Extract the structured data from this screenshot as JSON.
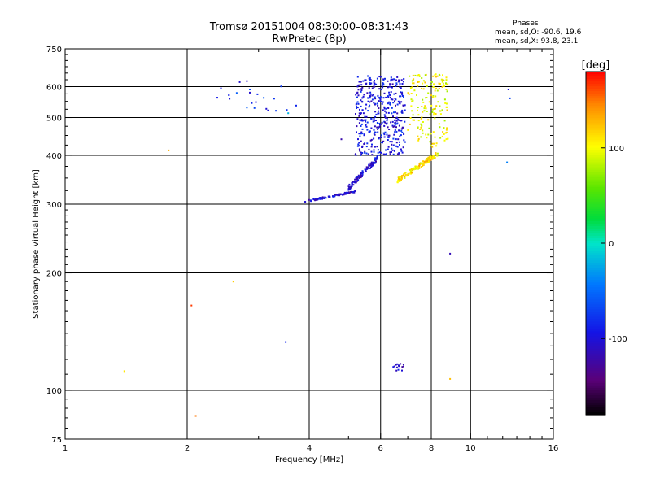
{
  "header": {
    "title_line1": "Tromsø 20151004 08:30:00–08:31:43",
    "title_line2": "RwPretec (8p)",
    "info_title": "Phases",
    "info_o": "mean, sd,O: -90.6, 19.6",
    "info_x": "mean, sd,X:  93.8, 23.1"
  },
  "colorbar": {
    "label": "[deg]",
    "ticks": [
      {
        "value": 100,
        "label": "100"
      },
      {
        "value": 0,
        "label": "0"
      },
      {
        "value": -100,
        "label": "-100"
      }
    ],
    "range": [
      -180,
      180
    ]
  },
  "chart_data": {
    "type": "scatter",
    "title": "Tromsø 20151004 08:30:00–08:31:43",
    "subtitle": "RwPretec (8p)",
    "xlabel": "Frequency [MHz]",
    "ylabel": "Stationary phase Virtual Height [km]",
    "xscale": "log",
    "yscale": "log",
    "xlim": [
      1,
      16
    ],
    "ylim": [
      75,
      750
    ],
    "xticks": [
      1,
      2,
      4,
      6,
      8,
      10,
      16
    ],
    "xtick_labels": [
      "1",
      "2",
      "4",
      "6",
      "8",
      "10",
      "16"
    ],
    "yticks": [
      75,
      100,
      200,
      300,
      400,
      500,
      600,
      750
    ],
    "ytick_labels": [
      "75",
      "100",
      "200",
      "300",
      "400",
      "500",
      "600",
      "750"
    ],
    "grid": true,
    "color_scale": "phase [deg]",
    "point_groups": [
      {
        "x": [
          3.9,
          5.2
        ],
        "y": [
          303,
          325
        ],
        "phase": -105,
        "count": 90,
        "shape": "band"
      },
      {
        "x": [
          5.0,
          5.9
        ],
        "y": [
          325,
          400
        ],
        "phase": -105,
        "count": 110,
        "shape": "band"
      },
      {
        "x": [
          5.2,
          6.9
        ],
        "y": [
          400,
          640
        ],
        "phase": -95,
        "count": 420,
        "shape": "cloud"
      },
      {
        "x": [
          6.6,
          8.3
        ],
        "y": [
          340,
          410
        ],
        "phase": 110,
        "count": 150,
        "shape": "band"
      },
      {
        "x": [
          7.0,
          8.8
        ],
        "y": [
          420,
          650
        ],
        "phase": 100,
        "count": 170,
        "shape": "cloud"
      },
      {
        "x": [
          2.35,
          3.75
        ],
        "y": [
          520,
          625
        ],
        "phase": -80,
        "count": 22,
        "shape": "cloud"
      },
      {
        "x": [
          6.4,
          6.9
        ],
        "y": [
          112,
          117
        ],
        "phase": -110,
        "count": 14,
        "shape": "cloud"
      }
    ],
    "isolated_points": [
      {
        "x": 1.4,
        "y": 112,
        "phase": 110
      },
      {
        "x": 1.8,
        "y": 412,
        "phase": 130
      },
      {
        "x": 2.05,
        "y": 165,
        "phase": 165
      },
      {
        "x": 2.1,
        "y": 86,
        "phase": 150
      },
      {
        "x": 2.6,
        "y": 190,
        "phase": 120
      },
      {
        "x": 3.5,
        "y": 133,
        "phase": -85
      },
      {
        "x": 3.55,
        "y": 513,
        "phase": -20
      },
      {
        "x": 4.8,
        "y": 440,
        "phase": -120
      },
      {
        "x": 8.9,
        "y": 224,
        "phase": -115
      },
      {
        "x": 8.9,
        "y": 107,
        "phase": 125
      },
      {
        "x": 12.3,
        "y": 384,
        "phase": -40
      },
      {
        "x": 12.5,
        "y": 560,
        "phase": -70
      },
      {
        "x": 12.4,
        "y": 590,
        "phase": -100
      }
    ]
  }
}
